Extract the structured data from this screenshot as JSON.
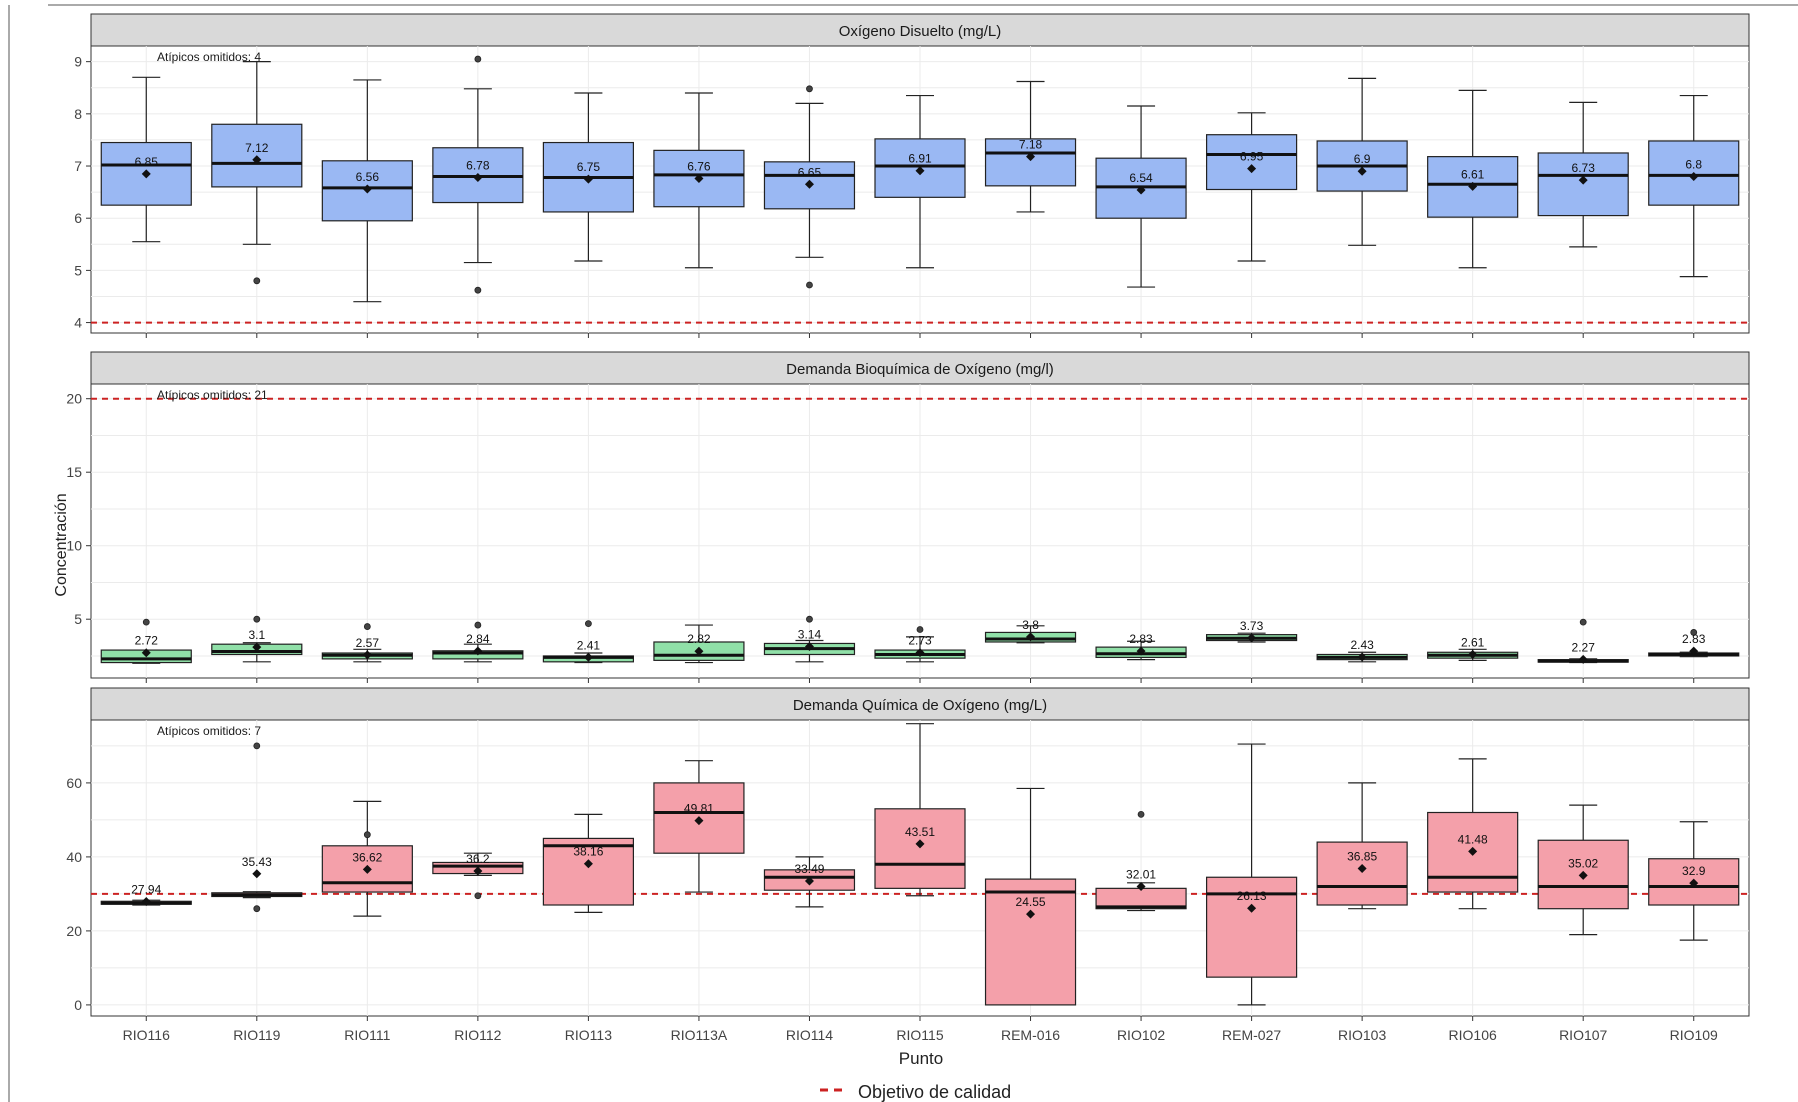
{
  "chart_data": {
    "type": "box",
    "ylabel": "Concentración",
    "xlabel": "Punto",
    "categories": [
      "RIO116",
      "RIO119",
      "RIO111",
      "RIO112",
      "RIO113",
      "RIO113A",
      "RIO114",
      "RIO115",
      "REM-016",
      "RIO102",
      "REM-027",
      "RIO103",
      "RIO106",
      "RIO107",
      "RIO109"
    ],
    "legend": {
      "label": "Objetivo de calidad",
      "placement": "bottom",
      "style": "red dashed line"
    },
    "colors": {
      "od": "#9ab8f3",
      "dbo": "#90e0a8",
      "dqo": "#f4a0aa",
      "threshold": "#cc2222"
    },
    "panels": [
      {
        "title": "Oxígeno Disuelto (mg/L)",
        "note": "Atípicos omitidos: 4",
        "ylim": [
          3.8,
          9.3
        ],
        "yticks": [
          4,
          5,
          6,
          7,
          8,
          9
        ],
        "threshold": 4,
        "fill": "#9ab8f3",
        "boxes": [
          {
            "whisker_low": 5.55,
            "q1": 6.25,
            "median": 7.02,
            "q3": 7.45,
            "whisker_high": 8.7,
            "mean": 6.85,
            "mean_label": "6.85",
            "outliers": []
          },
          {
            "whisker_low": 5.5,
            "q1": 6.6,
            "median": 7.05,
            "q3": 7.8,
            "whisker_high": 9.0,
            "mean": 7.12,
            "mean_label": "7.12",
            "outliers": [
              4.8
            ]
          },
          {
            "whisker_low": 4.4,
            "q1": 5.95,
            "median": 6.58,
            "q3": 7.1,
            "whisker_high": 8.65,
            "mean": 6.56,
            "mean_label": "6.56",
            "outliers": []
          },
          {
            "whisker_low": 5.15,
            "q1": 6.3,
            "median": 6.8,
            "q3": 7.35,
            "whisker_high": 8.48,
            "mean": 6.78,
            "mean_label": "6.78",
            "outliers": [
              4.62,
              9.05
            ]
          },
          {
            "whisker_low": 5.18,
            "q1": 6.12,
            "median": 6.78,
            "q3": 7.45,
            "whisker_high": 8.4,
            "mean": 6.75,
            "mean_label": "6.75",
            "outliers": []
          },
          {
            "whisker_low": 5.05,
            "q1": 6.22,
            "median": 6.83,
            "q3": 7.3,
            "whisker_high": 8.4,
            "mean": 6.76,
            "mean_label": "6.76",
            "outliers": []
          },
          {
            "whisker_low": 5.25,
            "q1": 6.18,
            "median": 6.82,
            "q3": 7.08,
            "whisker_high": 8.2,
            "mean": 6.65,
            "mean_label": "6.65",
            "outliers": [
              4.72,
              8.48
            ]
          },
          {
            "whisker_low": 5.05,
            "q1": 6.4,
            "median": 7.0,
            "q3": 7.52,
            "whisker_high": 8.35,
            "mean": 6.91,
            "mean_label": "6.91",
            "outliers": []
          },
          {
            "whisker_low": 6.12,
            "q1": 6.62,
            "median": 7.25,
            "q3": 7.52,
            "whisker_high": 8.62,
            "mean": 7.18,
            "mean_label": "7.18",
            "outliers": []
          },
          {
            "whisker_low": 4.68,
            "q1": 6.0,
            "median": 6.6,
            "q3": 7.15,
            "whisker_high": 8.15,
            "mean": 6.54,
            "mean_label": "6.54",
            "outliers": []
          },
          {
            "whisker_low": 5.18,
            "q1": 6.55,
            "median": 7.22,
            "q3": 7.6,
            "whisker_high": 8.02,
            "mean": 6.95,
            "mean_label": "6.95",
            "outliers": []
          },
          {
            "whisker_low": 5.48,
            "q1": 6.52,
            "median": 7.0,
            "q3": 7.48,
            "whisker_high": 8.68,
            "mean": 6.9,
            "mean_label": "6.9",
            "outliers": []
          },
          {
            "whisker_low": 5.05,
            "q1": 6.02,
            "median": 6.65,
            "q3": 7.18,
            "whisker_high": 8.45,
            "mean": 6.61,
            "mean_label": "6.61",
            "outliers": []
          },
          {
            "whisker_low": 5.45,
            "q1": 6.05,
            "median": 6.82,
            "q3": 7.25,
            "whisker_high": 8.22,
            "mean": 6.73,
            "mean_label": "6.73",
            "outliers": []
          },
          {
            "whisker_low": 4.88,
            "q1": 6.25,
            "median": 6.82,
            "q3": 7.48,
            "whisker_high": 8.35,
            "mean": 6.8,
            "mean_label": "6.8",
            "outliers": []
          }
        ]
      },
      {
        "title": "Demanda Bioquímica de Oxígeno (mg/l)",
        "note": "Atípicos omitidos: 21",
        "ylim": [
          1.0,
          21.0
        ],
        "yticks": [
          5,
          10,
          15,
          20
        ],
        "threshold": 20,
        "fill": "#90e0a8",
        "boxes": [
          {
            "whisker_low": 2.0,
            "q1": 2.05,
            "median": 2.3,
            "q3": 2.9,
            "whisker_high": 2.9,
            "mean": 2.72,
            "mean_label": "2.72",
            "outliers": [
              4.8
            ]
          },
          {
            "whisker_low": 2.1,
            "q1": 2.6,
            "median": 2.8,
            "q3": 3.3,
            "whisker_high": 3.4,
            "mean": 3.1,
            "mean_label": "3.1",
            "outliers": [
              5.0
            ]
          },
          {
            "whisker_low": 2.1,
            "q1": 2.3,
            "median": 2.55,
            "q3": 2.7,
            "whisker_high": 2.95,
            "mean": 2.57,
            "mean_label": "2.57",
            "outliers": [
              4.5
            ]
          },
          {
            "whisker_low": 2.1,
            "q1": 2.3,
            "median": 2.7,
            "q3": 2.85,
            "whisker_high": 3.3,
            "mean": 2.84,
            "mean_label": "2.84",
            "outliers": [
              4.6
            ]
          },
          {
            "whisker_low": 2.05,
            "q1": 2.1,
            "median": 2.4,
            "q3": 2.5,
            "whisker_high": 2.7,
            "mean": 2.41,
            "mean_label": "2.41",
            "outliers": [
              4.7
            ]
          },
          {
            "whisker_low": 2.05,
            "q1": 2.2,
            "median": 2.55,
            "q3": 3.45,
            "whisker_high": 4.6,
            "mean": 2.82,
            "mean_label": "2.82",
            "outliers": []
          },
          {
            "whisker_low": 2.1,
            "q1": 2.6,
            "median": 3.0,
            "q3": 3.35,
            "whisker_high": 3.55,
            "mean": 3.14,
            "mean_label": "3.14",
            "outliers": [
              5.0
            ]
          },
          {
            "whisker_low": 2.1,
            "q1": 2.35,
            "median": 2.6,
            "q3": 2.9,
            "whisker_high": 3.8,
            "mean": 2.73,
            "mean_label": "2.73",
            "outliers": [
              4.3
            ]
          },
          {
            "whisker_low": 3.4,
            "q1": 3.45,
            "median": 3.65,
            "q3": 4.1,
            "whisker_high": 4.55,
            "mean": 3.8,
            "mean_label": "3.8",
            "outliers": []
          },
          {
            "whisker_low": 2.25,
            "q1": 2.4,
            "median": 2.65,
            "q3": 3.1,
            "whisker_high": 3.5,
            "mean": 2.83,
            "mean_label": "2.83",
            "outliers": []
          },
          {
            "whisker_low": 3.45,
            "q1": 3.55,
            "median": 3.7,
            "q3": 3.95,
            "whisker_high": 4.05,
            "mean": 3.73,
            "mean_label": "3.73",
            "outliers": []
          },
          {
            "whisker_low": 2.1,
            "q1": 2.25,
            "median": 2.4,
            "q3": 2.6,
            "whisker_high": 2.75,
            "mean": 2.43,
            "mean_label": "2.43",
            "outliers": []
          },
          {
            "whisker_low": 2.2,
            "q1": 2.35,
            "median": 2.55,
            "q3": 2.75,
            "whisker_high": 2.95,
            "mean": 2.61,
            "mean_label": "2.61",
            "outliers": []
          },
          {
            "whisker_low": 2.05,
            "q1": 2.08,
            "median": 2.15,
            "q3": 2.25,
            "whisker_high": 2.3,
            "mean": 2.27,
            "mean_label": "2.27",
            "outliers": [
              4.8
            ]
          },
          {
            "whisker_low": 2.45,
            "q1": 2.5,
            "median": 2.6,
            "q3": 2.7,
            "whisker_high": 2.75,
            "mean": 2.83,
            "mean_label": "2.83",
            "outliers": [
              4.1
            ]
          }
        ]
      },
      {
        "title": "Demanda Química de Oxígeno (mg/L)",
        "note": "Atípicos omitidos: 7",
        "ylim": [
          -3,
          77
        ],
        "yticks": [
          0,
          20,
          40,
          60
        ],
        "threshold": 30,
        "fill": "#f4a0aa",
        "boxes": [
          {
            "whisker_low": 27.0,
            "q1": 27.2,
            "median": 27.5,
            "q3": 28.0,
            "whisker_high": 28.3,
            "mean": 27.94,
            "mean_label": "27.94",
            "outliers": []
          },
          {
            "whisker_low": 29.0,
            "q1": 29.3,
            "median": 29.7,
            "q3": 30.3,
            "whisker_high": 30.6,
            "mean": 35.43,
            "mean_label": "35.43",
            "outliers": [
              26.0,
              70.0
            ]
          },
          {
            "whisker_low": 24.0,
            "q1": 30.5,
            "median": 33.0,
            "q3": 43.0,
            "whisker_high": 55.0,
            "mean": 36.62,
            "mean_label": "36.62",
            "outliers": [
              46.0
            ]
          },
          {
            "whisker_low": 35.0,
            "q1": 35.5,
            "median": 37.5,
            "q3": 38.5,
            "whisker_high": 41.0,
            "mean": 36.2,
            "mean_label": "36.2",
            "outliers": [
              29.5
            ]
          },
          {
            "whisker_low": 25.0,
            "q1": 27.0,
            "median": 43.0,
            "q3": 45.0,
            "whisker_high": 51.5,
            "mean": 38.16,
            "mean_label": "38.16",
            "outliers": []
          },
          {
            "whisker_low": 30.5,
            "q1": 41.0,
            "median": 52.0,
            "q3": 60.0,
            "whisker_high": 66.0,
            "mean": 49.81,
            "mean_label": "49.81",
            "outliers": []
          },
          {
            "whisker_low": 26.5,
            "q1": 31.0,
            "median": 34.5,
            "q3": 36.5,
            "whisker_high": 40.0,
            "mean": 33.49,
            "mean_label": "33.49",
            "outliers": []
          },
          {
            "whisker_low": 29.5,
            "q1": 31.5,
            "median": 38.0,
            "q3": 53.0,
            "whisker_high": 76.0,
            "mean": 43.51,
            "mean_label": "43.51",
            "outliers": []
          },
          {
            "whisker_low": 0.0,
            "q1": 0.0,
            "median": 30.5,
            "q3": 34.0,
            "whisker_high": 58.5,
            "mean": 24.55,
            "mean_label": "24.55",
            "outliers": []
          },
          {
            "whisker_low": 25.5,
            "q1": 26.0,
            "median": 26.5,
            "q3": 31.5,
            "whisker_high": 33.0,
            "mean": 32.01,
            "mean_label": "32.01",
            "outliers": [
              51.5
            ]
          },
          {
            "whisker_low": 0.0,
            "q1": 7.5,
            "median": 30.0,
            "q3": 34.5,
            "whisker_high": 70.5,
            "mean": 26.13,
            "mean_label": "26.13",
            "outliers": []
          },
          {
            "whisker_low": 26.0,
            "q1": 27.0,
            "median": 32.0,
            "q3": 44.0,
            "whisker_high": 60.0,
            "mean": 36.85,
            "mean_label": "36.85",
            "outliers": []
          },
          {
            "whisker_low": 26.0,
            "q1": 30.5,
            "median": 34.5,
            "q3": 52.0,
            "whisker_high": 66.5,
            "mean": 41.48,
            "mean_label": "41.48",
            "outliers": []
          },
          {
            "whisker_low": 19.0,
            "q1": 26.0,
            "median": 32.0,
            "q3": 44.5,
            "whisker_high": 54.0,
            "mean": 35.02,
            "mean_label": "35.02",
            "outliers": []
          },
          {
            "whisker_low": 17.5,
            "q1": 27.0,
            "median": 32.0,
            "q3": 39.5,
            "whisker_high": 49.5,
            "mean": 32.9,
            "mean_label": "32.9",
            "outliers": []
          }
        ]
      }
    ]
  }
}
